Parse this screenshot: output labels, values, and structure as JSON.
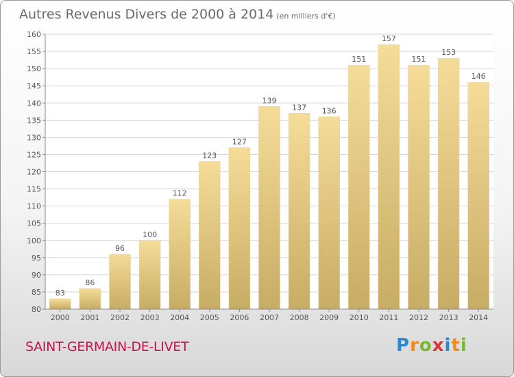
{
  "title": "Autres Revenus Divers de 2000 à 2014",
  "unit": "(en milliers d'€)",
  "place": "SAINT-GERMAIN-DE-LIVET",
  "logo": {
    "letters": [
      "P",
      "r",
      "o",
      "x",
      "i",
      "t",
      "i"
    ],
    "colors": [
      "#2a8bd0",
      "#f08a1c",
      "#7ab830",
      "#d43a3a",
      "#2a8bd0",
      "#f08a1c",
      "#7ab830"
    ]
  },
  "colors": {
    "bar_light": "#f5dc98",
    "bar_dark": "#c7ac64",
    "grid": "#d6d6d6",
    "text": "#555555"
  },
  "chart_data": {
    "type": "bar",
    "categories": [
      "2000",
      "2001",
      "2002",
      "2003",
      "2004",
      "2005",
      "2006",
      "2007",
      "2008",
      "2009",
      "2010",
      "2011",
      "2012",
      "2013",
      "2014"
    ],
    "values": [
      83,
      86,
      96,
      100,
      112,
      123,
      127,
      139,
      137,
      136,
      151,
      157,
      151,
      153,
      146
    ],
    "ylim": [
      80,
      160
    ],
    "yticks": [
      80,
      85,
      90,
      95,
      100,
      105,
      110,
      115,
      120,
      125,
      130,
      135,
      140,
      145,
      150,
      155,
      160
    ],
    "grid": true,
    "xlabel": "",
    "ylabel": ""
  }
}
